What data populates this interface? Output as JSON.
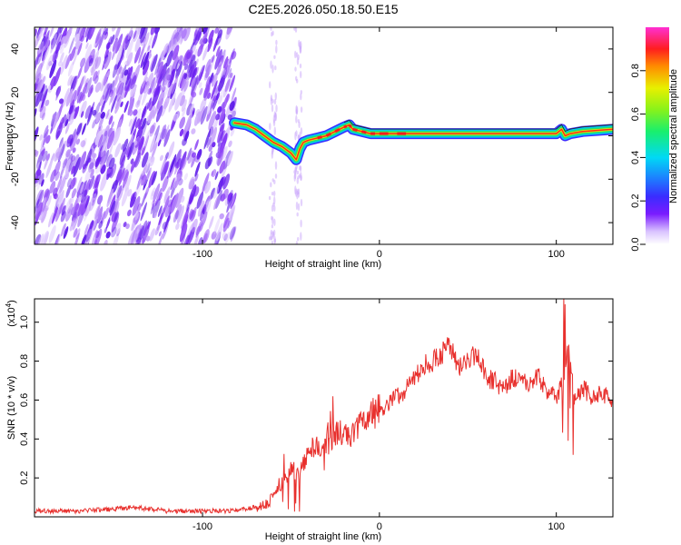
{
  "chart_data": [
    {
      "type": "heatmap",
      "title": "C2E5.2026.050.18.50.E15",
      "xlabel": "Height of straight line (km)",
      "ylabel": "Frequency (Hz)",
      "xlim": [
        -195,
        132
      ],
      "ylim": [
        -50,
        50
      ],
      "xticks": [
        -100,
        0,
        100
      ],
      "xtick_labels": [
        "-100",
        "0",
        "100"
      ],
      "yticks": [
        -40,
        -20,
        0,
        20,
        40
      ],
      "ytick_labels": [
        "-40",
        "-20",
        "0",
        "20",
        "40"
      ],
      "colorbar": {
        "label": "Normalized spectral amplitude",
        "range": [
          0,
          1
        ],
        "ticks": [
          0.0,
          0.2,
          0.4,
          0.6,
          0.8
        ],
        "tick_labels": [
          "0.0",
          "0.2",
          "0.4",
          "0.6",
          "0.8"
        ]
      },
      "noise_region": {
        "x_from": -195,
        "x_to": -82,
        "description_level": "low"
      },
      "ridge": {
        "x": [
          -82,
          -75,
          -70,
          -65,
          -60,
          -55,
          -50,
          -47,
          -45,
          -43,
          -40,
          -35,
          -30,
          -25,
          -20,
          -17,
          -15,
          -10,
          -5,
          0,
          10,
          20,
          40,
          60,
          80,
          100,
          103,
          105,
          108,
          115,
          132
        ],
        "freq_hz": [
          6,
          5,
          3,
          0,
          -3,
          -5,
          -8,
          -11,
          -6,
          -3,
          -2,
          -1,
          0,
          2,
          4,
          5,
          3,
          2,
          1,
          1,
          1,
          1,
          1,
          1,
          1,
          1,
          3,
          0,
          1,
          2,
          3
        ]
      }
    },
    {
      "type": "line",
      "title": "",
      "xlabel": "Height of straight line (km)",
      "ylabel": "SNR (10 * v/v)",
      "y_multiplier": "(x10",
      "y_multiplier_exp": "4",
      "y_multiplier_close": ")",
      "xlim": [
        -195,
        132
      ],
      "ylim": [
        0,
        1.12
      ],
      "xticks": [
        -100,
        0,
        100
      ],
      "xtick_labels": [
        "-100",
        "0",
        "100"
      ],
      "yticks": [
        0.2,
        0.4,
        0.6,
        0.8,
        1.0
      ],
      "ytick_labels": [
        "0.2",
        "0.4",
        "0.6",
        "0.8",
        "1.0"
      ],
      "color": "#e8302d",
      "series": [
        {
          "name": "SNR",
          "x": [
            -195,
            -170,
            -150,
            -140,
            -130,
            -120,
            -100,
            -85,
            -75,
            -65,
            -60,
            -55,
            -50,
            -45,
            -40,
            -35,
            -30,
            -25,
            -20,
            -15,
            -10,
            -5,
            0,
            5,
            10,
            15,
            20,
            25,
            30,
            35,
            40,
            45,
            50,
            55,
            60,
            65,
            70,
            75,
            80,
            85,
            90,
            95,
            100,
            105,
            107,
            110,
            115,
            120,
            125,
            132
          ],
          "y": [
            0.03,
            0.03,
            0.04,
            0.05,
            0.04,
            0.03,
            0.03,
            0.03,
            0.04,
            0.06,
            0.1,
            0.18,
            0.25,
            0.22,
            0.32,
            0.38,
            0.36,
            0.42,
            0.45,
            0.42,
            0.47,
            0.52,
            0.55,
            0.58,
            0.62,
            0.65,
            0.72,
            0.78,
            0.8,
            0.84,
            0.88,
            0.76,
            0.8,
            0.85,
            0.72,
            0.7,
            0.66,
            0.72,
            0.7,
            0.68,
            0.72,
            0.64,
            0.62,
            0.7,
            0.9,
            0.6,
            0.66,
            0.62,
            0.64,
            0.6
          ]
        }
      ]
    }
  ]
}
